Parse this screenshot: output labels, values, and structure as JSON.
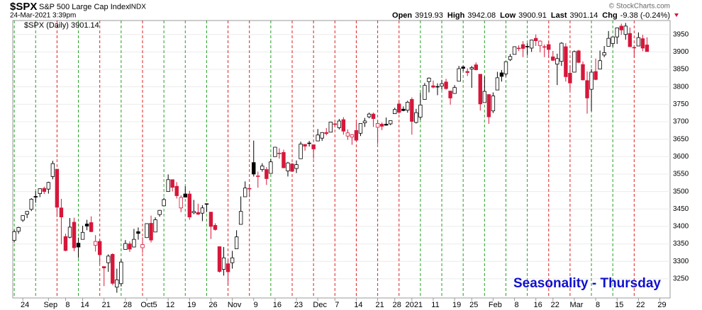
{
  "header": {
    "symbol": "$SPX",
    "name": "S&P 500 Large Cap Index",
    "exchange": "INDX",
    "date": "24-Mar-2021 3:39pm",
    "credit": "© StockCharts.com",
    "quote": [
      {
        "label": "Open",
        "value": "3919.93"
      },
      {
        "label": "High",
        "value": "3942.08"
      },
      {
        "label": "Low",
        "value": "3900.91"
      },
      {
        "label": "Last",
        "value": "3901.14"
      },
      {
        "label": "Chg",
        "value": "-9.38 (-0.24%)"
      }
    ]
  },
  "chart_data": {
    "type": "candlestick",
    "legend": "$SPX (Daily) 3901.14",
    "annotation": "Seasonality - Thursday",
    "up_color": "#000000",
    "down_color": "#d6173a",
    "grid": true,
    "ylim": [
      3195,
      3990
    ],
    "yticks": [
      3250,
      3300,
      3350,
      3400,
      3450,
      3500,
      3550,
      3600,
      3650,
      3700,
      3750,
      3800,
      3850,
      3900,
      3950
    ],
    "xlim": [
      -0.35,
      153.4
    ],
    "xticks": [
      {
        "value": 2,
        "label": "24"
      },
      {
        "value": 8,
        "label": "Sep"
      },
      {
        "value": 12,
        "label": "8"
      },
      {
        "value": 16,
        "label": "14"
      },
      {
        "value": 21,
        "label": "21"
      },
      {
        "value": 26,
        "label": "28"
      },
      {
        "value": 31,
        "label": "Oct5"
      },
      {
        "value": 36,
        "label": "12"
      },
      {
        "value": 41,
        "label": "19"
      },
      {
        "value": 46,
        "label": "26"
      },
      {
        "value": 51,
        "label": "Nov"
      },
      {
        "value": 56,
        "label": "9"
      },
      {
        "value": 61,
        "label": "16"
      },
      {
        "value": 66,
        "label": "23"
      },
      {
        "value": 71,
        "label": "Dec"
      },
      {
        "value": 75,
        "label": "7"
      },
      {
        "value": 80,
        "label": "14"
      },
      {
        "value": 85,
        "label": "21"
      },
      {
        "value": 89,
        "label": "28"
      },
      {
        "value": 93,
        "label": "2021"
      },
      {
        "value": 98,
        "label": "11"
      },
      {
        "value": 103,
        "label": "19"
      },
      {
        "value": 107,
        "label": "25"
      },
      {
        "value": 112,
        "label": "Feb"
      },
      {
        "value": 117,
        "label": "8"
      },
      {
        "value": 122,
        "label": "16"
      },
      {
        "value": 126,
        "label": "22"
      },
      {
        "value": 131,
        "label": "Mar"
      },
      {
        "value": 136,
        "label": "8"
      },
      {
        "value": 141,
        "label": "15"
      },
      {
        "value": 146,
        "label": "22"
      },
      {
        "value": 151,
        "label": "29"
      }
    ],
    "ohlc": [
      [
        3360,
        3390,
        3354,
        3385
      ],
      [
        3386,
        3399,
        3379,
        3397
      ],
      [
        3418,
        3432,
        3413,
        3431
      ],
      [
        3435,
        3444,
        3424,
        3443
      ],
      [
        3449,
        3481,
        3444,
        3478
      ],
      [
        3486,
        3501,
        3468,
        3484
      ],
      [
        3494,
        3509,
        3484,
        3508
      ],
      [
        3509,
        3514,
        3493,
        3500
      ],
      [
        3507,
        3528,
        3494,
        3526
      ],
      [
        3543,
        3588,
        3535,
        3580
      ],
      [
        3564,
        3564,
        3427,
        3455
      ],
      [
        3453,
        3479,
        3349,
        3427
      ],
      [
        3371,
        3379,
        3329,
        3331
      ],
      [
        3369,
        3424,
        3366,
        3398
      ],
      [
        3412,
        3425,
        3329,
        3339
      ],
      [
        3352,
        3368,
        3310,
        3341
      ],
      [
        3363,
        3402,
        3363,
        3383
      ],
      [
        3407,
        3419,
        3389,
        3401
      ],
      [
        3411,
        3429,
        3384,
        3385
      ],
      [
        3346,
        3375,
        3328,
        3357
      ],
      [
        3357,
        3362,
        3292,
        3319
      ],
      [
        3285,
        3285,
        3229,
        3281
      ],
      [
        3296,
        3320,
        3270,
        3315
      ],
      [
        3320,
        3323,
        3232,
        3237
      ],
      [
        3226,
        3279,
        3210,
        3247
      ],
      [
        3236,
        3306,
        3228,
        3298
      ],
      [
        3334,
        3361,
        3334,
        3351
      ],
      [
        3350,
        3357,
        3327,
        3335
      ],
      [
        3341,
        3393,
        3340,
        3363
      ],
      [
        3385,
        3397,
        3362,
        3380
      ],
      [
        3339,
        3369,
        3324,
        3348
      ],
      [
        3368,
        3409,
        3367,
        3408
      ],
      [
        3409,
        3431,
        3354,
        3361
      ],
      [
        3384,
        3426,
        3384,
        3419
      ],
      [
        3434,
        3447,
        3428,
        3446
      ],
      [
        3459,
        3482,
        3459,
        3477
      ],
      [
        3500,
        3549,
        3499,
        3534
      ],
      [
        3534,
        3534,
        3500,
        3512
      ],
      [
        3515,
        3527,
        3480,
        3488
      ],
      [
        3453,
        3489,
        3441,
        3483
      ],
      [
        3493,
        3515,
        3483,
        3484
      ],
      [
        3493,
        3502,
        3419,
        3427
      ],
      [
        3439,
        3476,
        3435,
        3443
      ],
      [
        3440,
        3465,
        3433,
        3435
      ],
      [
        3438,
        3461,
        3415,
        3453
      ],
      [
        3464,
        3466,
        3441,
        3465
      ],
      [
        3441,
        3441,
        3364,
        3400
      ],
      [
        3403,
        3409,
        3388,
        3391
      ],
      [
        3342,
        3342,
        3268,
        3271
      ],
      [
        3277,
        3341,
        3259,
        3310
      ],
      [
        3293,
        3304,
        3233,
        3270
      ],
      [
        3296,
        3330,
        3279,
        3310
      ],
      [
        3336,
        3389,
        3336,
        3370
      ],
      [
        3406,
        3486,
        3405,
        3443
      ],
      [
        3485,
        3529,
        3485,
        3510
      ],
      [
        3508,
        3521,
        3484,
        3509
      ],
      [
        3583,
        3646,
        3543,
        3550
      ],
      [
        3543,
        3557,
        3511,
        3545
      ],
      [
        3563,
        3581,
        3557,
        3573
      ],
      [
        3563,
        3570,
        3519,
        3537
      ],
      [
        3552,
        3594,
        3552,
        3585
      ],
      [
        3600,
        3628,
        3601,
        3627
      ],
      [
        3610,
        3624,
        3594,
        3610
      ],
      [
        3612,
        3620,
        3567,
        3568
      ],
      [
        3559,
        3585,
        3543,
        3582
      ],
      [
        3579,
        3582,
        3556,
        3558
      ],
      [
        3566,
        3589,
        3553,
        3577
      ],
      [
        3594,
        3643,
        3594,
        3636
      ],
      [
        3635,
        3635,
        3617,
        3630
      ],
      [
        3639,
        3645,
        3629,
        3638
      ],
      [
        3634,
        3634,
        3594,
        3622
      ],
      [
        3645,
        3679,
        3645,
        3662
      ],
      [
        3653,
        3670,
        3645,
        3669
      ],
      [
        3669,
        3682,
        3661,
        3666
      ],
      [
        3670,
        3700,
        3670,
        3699
      ],
      [
        3694,
        3697,
        3685,
        3692
      ],
      [
        3683,
        3708,
        3678,
        3702
      ],
      [
        3706,
        3713,
        3663,
        3673
      ],
      [
        3659,
        3678,
        3648,
        3668
      ],
      [
        3656,
        3665,
        3634,
        3663
      ],
      [
        3675,
        3698,
        3645,
        3647
      ],
      [
        3667,
        3695,
        3659,
        3695
      ],
      [
        3697,
        3711,
        3685,
        3702
      ],
      [
        3714,
        3726,
        3710,
        3722
      ],
      [
        3722,
        3726,
        3685,
        3709
      ],
      [
        3684,
        3703,
        3636,
        3695
      ],
      [
        3693,
        3698,
        3676,
        3687
      ],
      [
        3693,
        3712,
        3689,
        3690
      ],
      [
        3694,
        3703,
        3690,
        3703
      ],
      [
        3723,
        3740,
        3723,
        3735
      ],
      [
        3751,
        3756,
        3723,
        3727
      ],
      [
        3736,
        3744,
        3730,
        3732
      ],
      [
        3733,
        3760,
        3726,
        3756
      ],
      [
        3764,
        3770,
        3663,
        3701
      ],
      [
        3698,
        3737,
        3695,
        3726
      ],
      [
        3713,
        3783,
        3706,
        3748
      ],
      [
        3764,
        3811,
        3764,
        3804
      ],
      [
        3815,
        3827,
        3784,
        3825
      ],
      [
        3803,
        3818,
        3796,
        3799
      ],
      [
        3801,
        3810,
        3776,
        3801
      ],
      [
        3802,
        3820,
        3792,
        3809
      ],
      [
        3814,
        3823,
        3792,
        3795
      ],
      [
        3788,
        3788,
        3749,
        3768
      ],
      [
        3781,
        3805,
        3780,
        3798
      ],
      [
        3816,
        3860,
        3816,
        3852
      ],
      [
        3857,
        3861,
        3845,
        3853
      ],
      [
        3844,
        3853,
        3831,
        3841
      ],
      [
        3851,
        3860,
        3797,
        3855
      ],
      [
        3863,
        3870,
        3847,
        3849
      ],
      [
        3836,
        3836,
        3732,
        3751
      ],
      [
        3755,
        3830,
        3755,
        3787
      ],
      [
        3778,
        3778,
        3694,
        3714
      ],
      [
        3731,
        3784,
        3725,
        3774
      ],
      [
        3791,
        3843,
        3791,
        3826
      ],
      [
        3840,
        3848,
        3815,
        3830
      ],
      [
        3837,
        3872,
        3830,
        3872
      ],
      [
        3878,
        3894,
        3874,
        3887
      ],
      [
        3893,
        3916,
        3893,
        3915
      ],
      [
        3910,
        3919,
        3903,
        3911
      ],
      [
        3921,
        3931,
        3885,
        3910
      ],
      [
        3916,
        3925,
        3891,
        3916
      ],
      [
        3911,
        3935,
        3900,
        3934
      ],
      [
        3939,
        3950,
        3917,
        3932
      ],
      [
        3918,
        3933,
        3899,
        3931
      ],
      [
        3915,
        3921,
        3885,
        3914
      ],
      [
        3921,
        3931,
        3884,
        3907
      ],
      [
        3886,
        3903,
        3874,
        3876
      ],
      [
        3865,
        3895,
        3805,
        3881
      ],
      [
        3873,
        3928,
        3860,
        3925
      ],
      [
        3915,
        3925,
        3815,
        3829
      ],
      [
        3839,
        3861,
        3789,
        3811
      ],
      [
        3842,
        3904,
        3842,
        3901
      ],
      [
        3903,
        3906,
        3868,
        3870
      ],
      [
        3864,
        3873,
        3818,
        3820
      ],
      [
        3818,
        3844,
        3723,
        3768
      ],
      [
        3793,
        3851,
        3730,
        3842
      ],
      [
        3844,
        3881,
        3819,
        3821
      ],
      [
        3851,
        3904,
        3851,
        3875
      ],
      [
        3891,
        3917,
        3885,
        3898
      ],
      [
        3916,
        3960,
        3916,
        3939
      ],
      [
        3924,
        3944,
        3915,
        3943
      ],
      [
        3943,
        3970,
        3923,
        3969
      ],
      [
        3974,
        3981,
        3949,
        3963
      ],
      [
        3950,
        3983,
        3935,
        3974
      ],
      [
        3953,
        3970,
        3914,
        3915
      ],
      [
        3913,
        3919,
        3885,
        3913
      ],
      [
        3917,
        3956,
        3917,
        3941
      ],
      [
        3938,
        3949,
        3902,
        3911
      ],
      [
        3920,
        3942,
        3901,
        3901
      ]
    ]
  }
}
